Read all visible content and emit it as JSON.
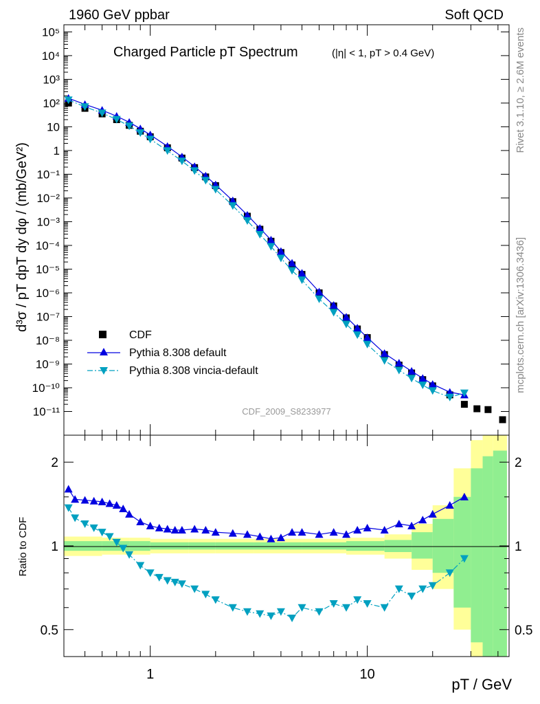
{
  "header": {
    "left": "1960 GeV ppbar",
    "right": "Soft QCD"
  },
  "side_labels": {
    "rivet": "Rivet 3.1.10, ≥ 2.6M events",
    "mcplots": "mcplots.cern.ch [arXiv:1306.3436]"
  },
  "watermark": "CDF_2009_S8233977",
  "chart_data": [
    {
      "panel": "main",
      "type": "scatter",
      "title": "Charged Particle pT Spectrum",
      "subtitle": "(|η| < 1, pT > 0.4 GeV)",
      "ylabel": "d³σ / pT dpT dy dφ / (mb/GeV²)",
      "xlabel": "pT / GeV",
      "x_scale": "log",
      "y_scale": "log",
      "xlim": [
        0.4,
        45
      ],
      "ylim": [
        1e-12,
        200000.0
      ],
      "x_tick_labels": [
        "1",
        "10"
      ],
      "y_tick_labels": [
        "10⁻¹¹",
        "10⁻¹⁰",
        "10⁻⁹",
        "10⁻⁸",
        "10⁻⁷",
        "10⁻⁶",
        "10⁻⁵",
        "10⁻⁴",
        "10⁻³",
        "10⁻²",
        "10⁻¹",
        "1",
        "10",
        "10²",
        "10³",
        "10⁴",
        "10⁵"
      ],
      "legend_position": "bottom-left",
      "series": [
        {
          "name": "CDF",
          "color": "#000000",
          "marker": "square",
          "x": [
            0.42,
            0.5,
            0.6,
            0.7,
            0.8,
            0.9,
            1.0,
            1.2,
            1.4,
            1.6,
            1.8,
            2.0,
            2.4,
            2.8,
            3.2,
            3.6,
            4.0,
            4.5,
            5.0,
            6.0,
            7.0,
            8.0,
            9.0,
            10.0,
            12.0,
            14.0,
            16.0,
            18.0,
            20.0,
            24.0,
            28.0,
            32.0,
            36.0,
            42.0
          ],
          "y": [
            100,
            60,
            35,
            20,
            11.5,
            6.5,
            3.8,
            1.3,
            0.48,
            0.19,
            0.077,
            0.033,
            0.007,
            0.0017,
            0.00048,
            0.00015,
            5e-05,
            1.5e-05,
            6e-06,
            1e-06,
            2.8e-07,
            8.8e-08,
            3e-08,
            1.3e-08,
            2.5e-09,
            9e-10,
            4.2e-10,
            2.2e-10,
            1.2e-10,
            5e-11,
            2e-11,
            1.3e-11,
            1.2e-11,
            4.5e-12
          ]
        },
        {
          "name": "Pythia 8.308 default",
          "color": "#0000e0",
          "marker": "triangle-up",
          "line": "solid",
          "x": [
            0.42,
            0.5,
            0.6,
            0.7,
            0.8,
            0.9,
            1.0,
            1.2,
            1.4,
            1.6,
            1.8,
            2.0,
            2.4,
            2.8,
            3.2,
            3.6,
            4.0,
            4.5,
            5.0,
            6.0,
            7.0,
            8.0,
            9.0,
            10.0,
            12.0,
            14.0,
            16.0,
            18.0,
            20.0,
            24.0,
            28.0
          ],
          "y": [
            160,
            88,
            50,
            28,
            15.5,
            8.3,
            4.6,
            1.5,
            0.54,
            0.21,
            0.085,
            0.036,
            0.0077,
            0.0019,
            0.00053,
            0.00017,
            5.6e-05,
            1.8e-05,
            6.8e-06,
            1.1e-06,
            3e-07,
            9.5e-08,
            3.3e-08,
            1.3e-08,
            2.8e-09,
            1.1e-09,
            5e-10,
            2.5e-10,
            1.4e-10,
            6.5e-11,
            5e-11
          ]
        },
        {
          "name": "Pythia 8.308 vincia-default",
          "color": "#00a0c0",
          "marker": "triangle-down",
          "line": "dashdot",
          "x": [
            0.42,
            0.5,
            0.6,
            0.7,
            0.8,
            0.9,
            1.0,
            1.2,
            1.4,
            1.6,
            1.8,
            2.0,
            2.4,
            2.8,
            3.2,
            3.6,
            4.0,
            4.5,
            5.0,
            6.0,
            7.0,
            8.0,
            9.0,
            10.0,
            12.0,
            14.0,
            16.0,
            18.0,
            20.0,
            24.0,
            28.0
          ],
          "y": [
            135,
            70,
            38,
            20.5,
            10.8,
            5.6,
            3.0,
            0.98,
            0.36,
            0.14,
            0.055,
            0.023,
            0.0047,
            0.0011,
            0.00029,
            9e-05,
            2.9e-05,
            8.7e-06,
            3.5e-06,
            5.5e-07,
            1.5e-07,
            4.8e-08,
            1.7e-08,
            6.8e-09,
            1.4e-09,
            5.5e-10,
            2.5e-10,
            1.3e-10,
            7.5e-11,
            4e-11,
            6e-11
          ]
        }
      ]
    },
    {
      "panel": "ratio",
      "type": "line",
      "ylabel": "Ratio to CDF",
      "y_scale": "log",
      "ylim": [
        0.4,
        2.5
      ],
      "y_tick_labels": [
        "0.5",
        "1",
        "2"
      ],
      "reference": 1.0,
      "series": [
        {
          "name": "Pythia 8.308 default",
          "color": "#0000e0",
          "x": [
            0.42,
            0.45,
            0.5,
            0.55,
            0.6,
            0.65,
            0.7,
            0.75,
            0.8,
            0.9,
            1.0,
            1.1,
            1.2,
            1.3,
            1.4,
            1.6,
            1.8,
            2.0,
            2.4,
            2.8,
            3.2,
            3.6,
            4.0,
            4.5,
            5.0,
            6.0,
            7.0,
            8.0,
            9.0,
            10.0,
            12.0,
            14.0,
            16.0,
            18.0,
            20.0,
            24.0,
            28.0
          ],
          "y": [
            1.6,
            1.47,
            1.46,
            1.45,
            1.44,
            1.42,
            1.4,
            1.36,
            1.3,
            1.22,
            1.18,
            1.16,
            1.15,
            1.14,
            1.14,
            1.15,
            1.14,
            1.12,
            1.11,
            1.1,
            1.08,
            1.06,
            1.07,
            1.12,
            1.12,
            1.1,
            1.12,
            1.1,
            1.14,
            1.16,
            1.14,
            1.2,
            1.18,
            1.24,
            1.3,
            1.4,
            1.5
          ]
        },
        {
          "name": "Pythia 8.308 vincia-default",
          "color": "#00a0c0",
          "x": [
            0.42,
            0.45,
            0.5,
            0.55,
            0.6,
            0.65,
            0.7,
            0.75,
            0.8,
            0.9,
            1.0,
            1.1,
            1.2,
            1.3,
            1.4,
            1.6,
            1.8,
            2.0,
            2.4,
            2.8,
            3.2,
            3.6,
            4.0,
            4.5,
            5.0,
            6.0,
            7.0,
            8.0,
            9.0,
            10.0,
            12.0,
            14.0,
            16.0,
            18.0,
            20.0,
            24.0,
            28.0
          ],
          "y": [
            1.37,
            1.26,
            1.2,
            1.16,
            1.12,
            1.08,
            1.03,
            0.98,
            0.93,
            0.85,
            0.8,
            0.77,
            0.75,
            0.74,
            0.73,
            0.7,
            0.67,
            0.64,
            0.6,
            0.58,
            0.57,
            0.56,
            0.58,
            0.55,
            0.6,
            0.58,
            0.62,
            0.6,
            0.64,
            0.62,
            0.6,
            0.7,
            0.66,
            0.7,
            0.72,
            0.8,
            0.9
          ]
        }
      ],
      "bands": [
        {
          "name": "CDF uncertainty (inner)",
          "color": "#90ee90",
          "x": [
            0.4,
            0.6,
            0.8,
            1.0,
            1.5,
            2.0,
            3.0,
            5.0,
            8.0,
            12.0,
            16.0,
            20.0,
            25.0,
            30.0,
            34.0,
            38.0,
            44.0
          ],
          "lo": [
            0.96,
            0.96,
            0.96,
            0.97,
            0.97,
            0.97,
            0.97,
            0.97,
            0.96,
            0.95,
            0.9,
            0.8,
            0.6,
            0.45,
            0.4,
            0.4,
            0.4
          ],
          "hi": [
            1.04,
            1.04,
            1.04,
            1.03,
            1.03,
            1.03,
            1.03,
            1.03,
            1.04,
            1.05,
            1.12,
            1.25,
            1.5,
            1.9,
            2.1,
            2.2,
            2.3
          ]
        },
        {
          "name": "CDF uncertainty (outer)",
          "color": "#ffff99",
          "x": [
            0.4,
            0.6,
            0.8,
            1.0,
            1.5,
            2.0,
            3.0,
            5.0,
            8.0,
            12.0,
            16.0,
            20.0,
            25.0,
            30.0,
            34.0,
            38.0,
            44.0
          ],
          "lo": [
            0.92,
            0.93,
            0.93,
            0.94,
            0.94,
            0.94,
            0.94,
            0.94,
            0.93,
            0.9,
            0.82,
            0.7,
            0.5,
            0.4,
            0.4,
            0.4,
            0.4
          ],
          "hi": [
            1.08,
            1.07,
            1.07,
            1.06,
            1.06,
            1.06,
            1.06,
            1.06,
            1.07,
            1.1,
            1.2,
            1.4,
            1.9,
            2.4,
            2.5,
            2.5,
            2.5
          ]
        }
      ]
    }
  ]
}
